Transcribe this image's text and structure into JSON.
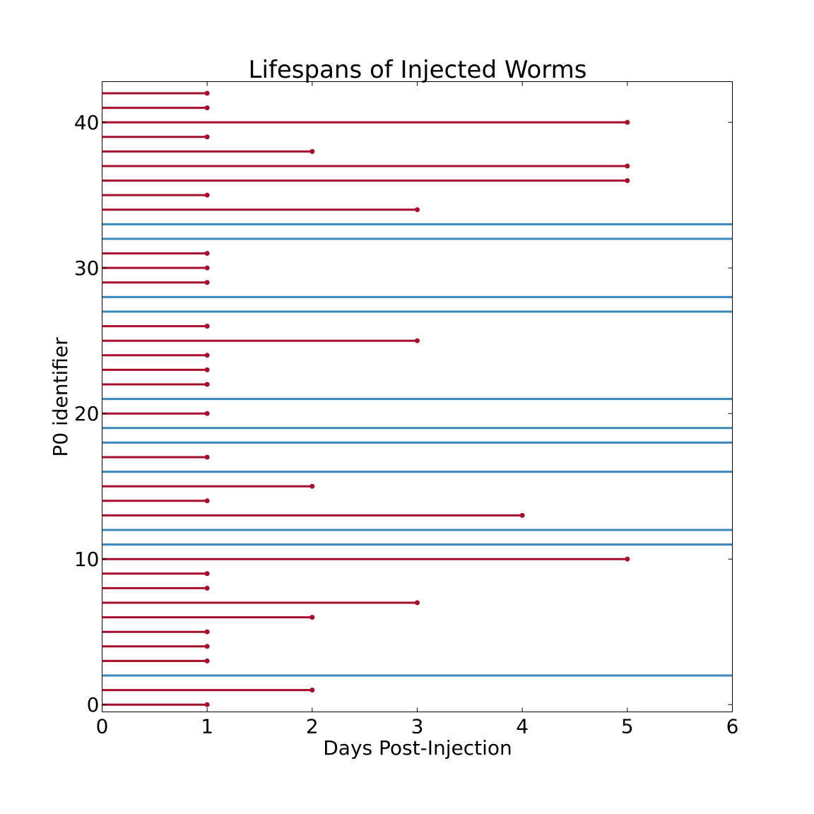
{
  "chart_data": {
    "type": "lifespan",
    "title": "Lifespans of Injected Worms",
    "xlabel": "Days Post-Injection",
    "ylabel": "P0 identifier",
    "xlim": [
      0,
      6
    ],
    "ylim": [
      -0.5,
      42.8
    ],
    "xticks": [
      0,
      1,
      2,
      3,
      4,
      5,
      6
    ],
    "yticks": [
      0,
      10,
      20,
      30,
      40
    ],
    "grid": false,
    "dead_color": "#a50f2d",
    "censored_color": "#3a87b8",
    "worms": [
      {
        "id": 0,
        "days": 1,
        "status": "dead"
      },
      {
        "id": 1,
        "days": 2,
        "status": "dead"
      },
      {
        "id": 2,
        "days": 6,
        "status": "censored"
      },
      {
        "id": 3,
        "days": 1,
        "status": "dead"
      },
      {
        "id": 4,
        "days": 1,
        "status": "dead"
      },
      {
        "id": 5,
        "days": 1,
        "status": "dead"
      },
      {
        "id": 6,
        "days": 2,
        "status": "dead"
      },
      {
        "id": 7,
        "days": 3,
        "status": "dead"
      },
      {
        "id": 8,
        "days": 1,
        "status": "dead"
      },
      {
        "id": 9,
        "days": 1,
        "status": "dead"
      },
      {
        "id": 10,
        "days": 5,
        "status": "dead"
      },
      {
        "id": 11,
        "days": 6,
        "status": "censored"
      },
      {
        "id": 12,
        "days": 6,
        "status": "censored"
      },
      {
        "id": 13,
        "days": 4,
        "status": "dead"
      },
      {
        "id": 14,
        "days": 1,
        "status": "dead"
      },
      {
        "id": 15,
        "days": 2,
        "status": "dead"
      },
      {
        "id": 16,
        "days": 6,
        "status": "censored"
      },
      {
        "id": 17,
        "days": 1,
        "status": "dead"
      },
      {
        "id": 18,
        "days": 6,
        "status": "censored"
      },
      {
        "id": 19,
        "days": 6,
        "status": "censored"
      },
      {
        "id": 20,
        "days": 1,
        "status": "dead"
      },
      {
        "id": 21,
        "days": 6,
        "status": "censored"
      },
      {
        "id": 22,
        "days": 1,
        "status": "dead"
      },
      {
        "id": 23,
        "days": 1,
        "status": "dead"
      },
      {
        "id": 24,
        "days": 1,
        "status": "dead"
      },
      {
        "id": 25,
        "days": 3,
        "status": "dead"
      },
      {
        "id": 26,
        "days": 1,
        "status": "dead"
      },
      {
        "id": 27,
        "days": 6,
        "status": "censored"
      },
      {
        "id": 28,
        "days": 6,
        "status": "censored"
      },
      {
        "id": 29,
        "days": 1,
        "status": "dead"
      },
      {
        "id": 30,
        "days": 1,
        "status": "dead"
      },
      {
        "id": 31,
        "days": 1,
        "status": "dead"
      },
      {
        "id": 32,
        "days": 6,
        "status": "censored"
      },
      {
        "id": 33,
        "days": 6,
        "status": "censored"
      },
      {
        "id": 34,
        "days": 3,
        "status": "dead"
      },
      {
        "id": 35,
        "days": 1,
        "status": "dead"
      },
      {
        "id": 36,
        "days": 5,
        "status": "dead"
      },
      {
        "id": 37,
        "days": 5,
        "status": "dead"
      },
      {
        "id": 38,
        "days": 2,
        "status": "dead"
      },
      {
        "id": 39,
        "days": 1,
        "status": "dead"
      },
      {
        "id": 40,
        "days": 5,
        "status": "dead"
      },
      {
        "id": 41,
        "days": 1,
        "status": "dead"
      },
      {
        "id": 42,
        "days": 1,
        "status": "dead"
      }
    ]
  }
}
